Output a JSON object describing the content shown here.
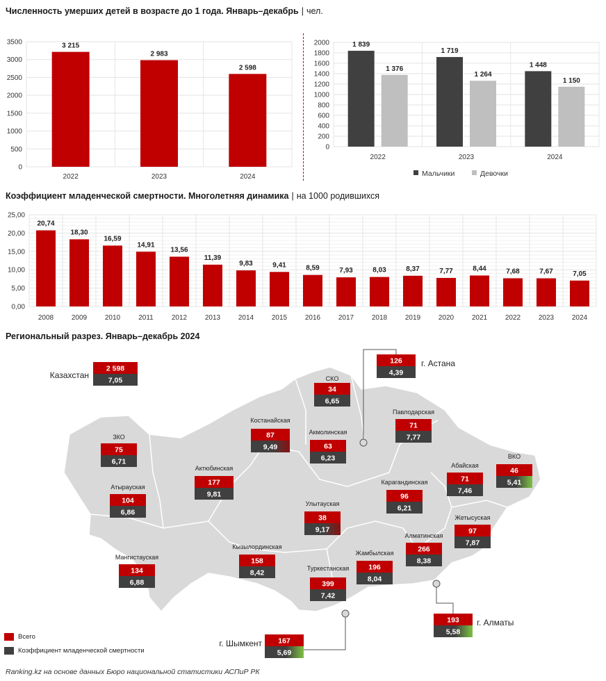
{
  "header": {
    "title1": "Численность умерших детей в возрасте до 1 года. Январь–декабрь",
    "title1_unit": "чел.",
    "title2": "Коэффициент младенческой смертности. Многолетняя динамика",
    "title2_unit": "на 1000 родившихся",
    "title3": "Региональный разрез. Январь–декабрь 2024",
    "separator": "|"
  },
  "colors": {
    "red": "#c00000",
    "dark": "#404040",
    "light": "#bfbfbf",
    "green": "#7dc243",
    "map": "#d9d9d9"
  },
  "chart_data": [
    {
      "type": "bar",
      "categories": [
        "2022",
        "2023",
        "2024"
      ],
      "values": [
        3215,
        2983,
        2598
      ],
      "value_labels": [
        "3 215",
        "2 983",
        "2 598"
      ],
      "ylim": [
        0,
        3500
      ],
      "y_ticks": [
        "0",
        "500",
        "1000",
        "1500",
        "2000",
        "2500",
        "3000",
        "3500"
      ],
      "grid": true
    },
    {
      "type": "bar",
      "categories": [
        "2022",
        "2023",
        "2024"
      ],
      "series": [
        {
          "name": "Мальчики",
          "values": [
            1839,
            1719,
            1448
          ],
          "labels": [
            "1 839",
            "1 719",
            "1 448"
          ]
        },
        {
          "name": "Девочки",
          "values": [
            1376,
            1264,
            1150
          ],
          "labels": [
            "1 376",
            "1 264",
            "1 150"
          ]
        }
      ],
      "ylim": [
        0,
        2000
      ],
      "y_ticks": [
        "0",
        "200",
        "400",
        "600",
        "800",
        "1000",
        "1200",
        "1400",
        "1600",
        "1800",
        "2000"
      ],
      "legend": "bottom",
      "grid": true
    },
    {
      "type": "bar",
      "categories": [
        "2008",
        "2009",
        "2010",
        "2011",
        "2012",
        "2013",
        "2014",
        "2015",
        "2016",
        "2017",
        "2018",
        "2019",
        "2020",
        "2021",
        "2022",
        "2023",
        "2024"
      ],
      "values": [
        20.74,
        18.3,
        16.59,
        14.91,
        13.56,
        11.39,
        9.83,
        9.41,
        8.59,
        7.93,
        8.03,
        8.37,
        7.77,
        8.44,
        7.68,
        7.67,
        7.05
      ],
      "value_labels": [
        "20,74",
        "18,30",
        "16,59",
        "14,91",
        "13,56",
        "11,39",
        "9,83",
        "9,41",
        "8,59",
        "7,93",
        "8,03",
        "8,37",
        "7,77",
        "8,44",
        "7,68",
        "7,67",
        "7,05"
      ],
      "ylim": [
        0,
        25
      ],
      "y_ticks": [
        "0,00",
        "5,00",
        "10,00",
        "15,00",
        "20,00",
        "25,00"
      ],
      "grid": true
    },
    {
      "type": "table",
      "columns": [
        "Всего",
        "Коэффициент младенческой смертности"
      ],
      "rows": [
        {
          "name": "Казахстан",
          "total": "2 598",
          "rate": "7,05"
        },
        {
          "name": "г. Астана",
          "total": "126",
          "rate": "4,39"
        },
        {
          "name": "СКО",
          "total": "34",
          "rate": "6,65"
        },
        {
          "name": "Павлодарская",
          "total": "71",
          "rate": "7,77"
        },
        {
          "name": "Костанайская",
          "total": "87",
          "rate": "9,49"
        },
        {
          "name": "Акмолинская",
          "total": "63",
          "rate": "6,23"
        },
        {
          "name": "ЗКО",
          "total": "75",
          "rate": "6,71"
        },
        {
          "name": "Актюбинская",
          "total": "177",
          "rate": "9,81"
        },
        {
          "name": "Абайская",
          "total": "71",
          "rate": "7,46"
        },
        {
          "name": "ВКО",
          "total": "46",
          "rate": "5,41"
        },
        {
          "name": "Атырауская",
          "total": "104",
          "rate": "6,86"
        },
        {
          "name": "Карагандинская",
          "total": "96",
          "rate": "6,21"
        },
        {
          "name": "Улытауская",
          "total": "38",
          "rate": "9,17"
        },
        {
          "name": "Жетысуская",
          "total": "97",
          "rate": "7,87"
        },
        {
          "name": "Алматинская",
          "total": "266",
          "rate": "8,38"
        },
        {
          "name": "Кызылординская",
          "total": "158",
          "rate": "8,42"
        },
        {
          "name": "Мангистауская",
          "total": "134",
          "rate": "6,88"
        },
        {
          "name": "Жамбылская",
          "total": "196",
          "rate": "8,04"
        },
        {
          "name": "Туркестанская",
          "total": "399",
          "rate": "7,42"
        },
        {
          "name": "г. Алматы",
          "total": "193",
          "rate": "5,58"
        },
        {
          "name": "г. Шымкент",
          "total": "167",
          "rate": "5,69"
        }
      ]
    }
  ],
  "legend": {
    "total_label": "Всего",
    "rate_label": "Коэффициент младенческой смертности"
  },
  "source": "Ranking.kz на основе данных Бюро национальной статистики АСПиР РК"
}
